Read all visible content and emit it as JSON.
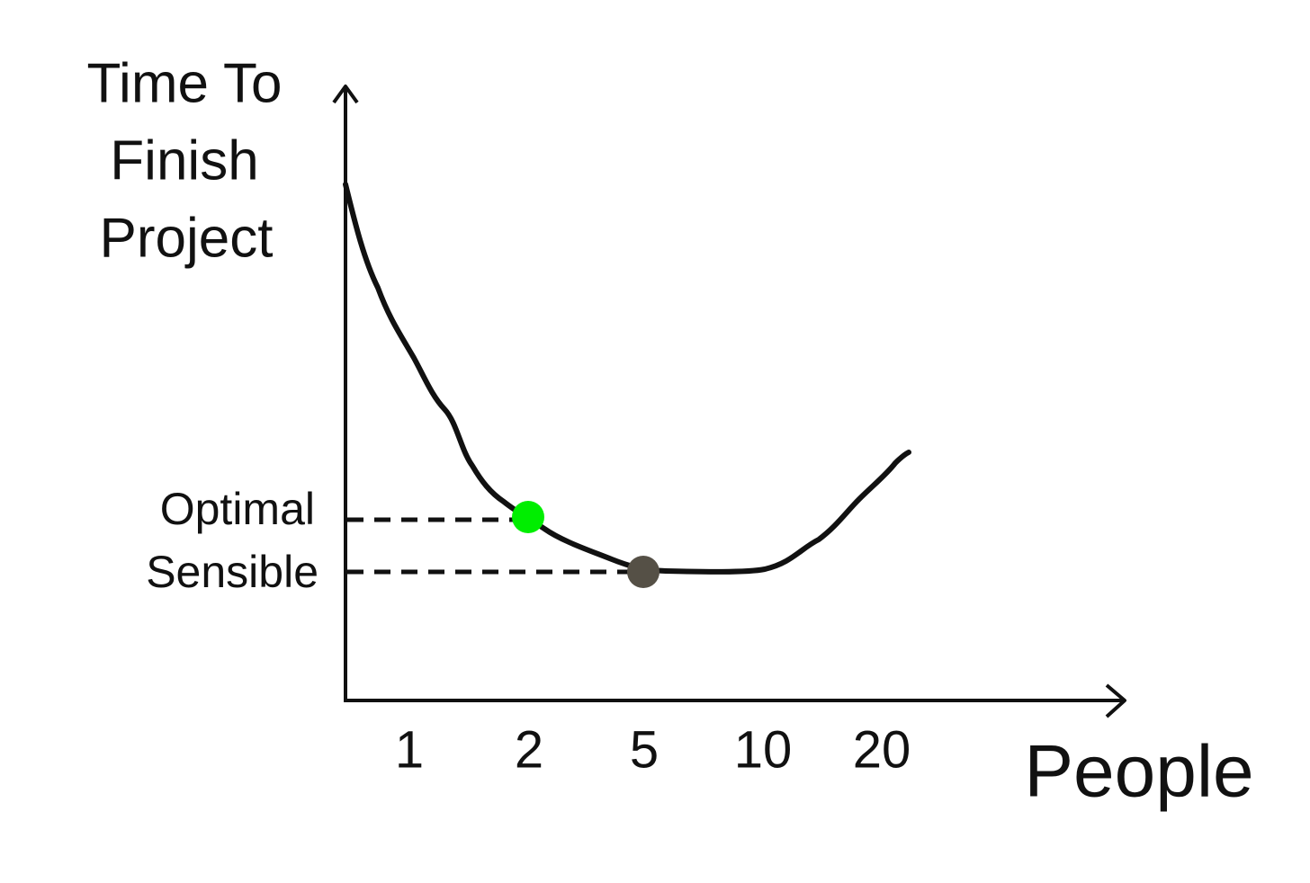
{
  "y_axis_label": [
    "Time To",
    "Finish",
    "Project"
  ],
  "x_axis_label": "People",
  "x_labels": [
    "1",
    "2",
    "5",
    "10",
    "20"
  ],
  "levels": [
    "Optimal",
    "Sensible"
  ]
}
